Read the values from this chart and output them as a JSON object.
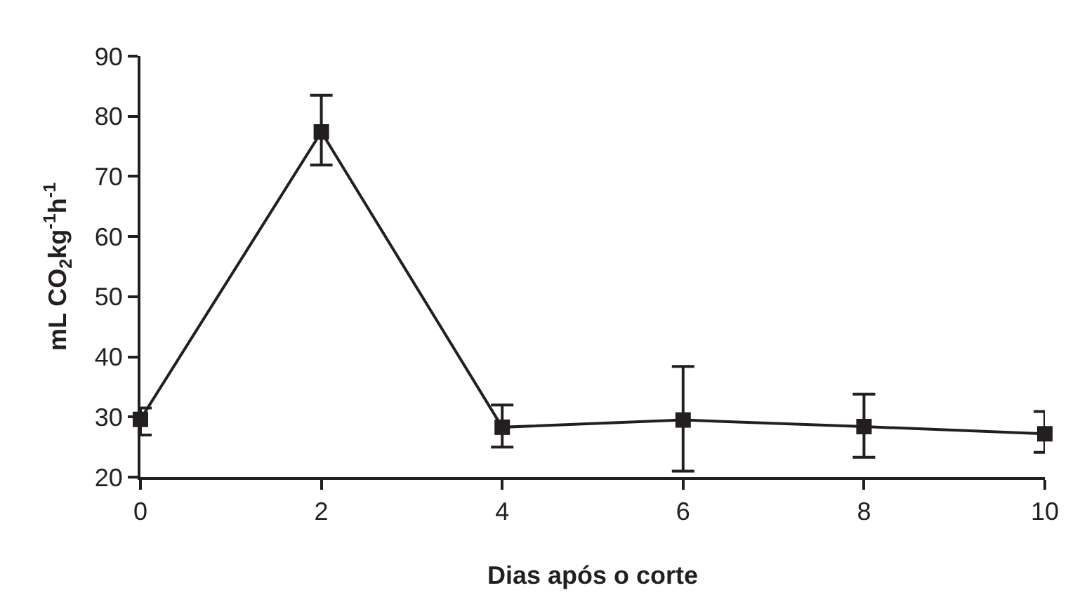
{
  "chart_data": {
    "type": "line",
    "xlabel": "Dias após o corte",
    "ylabel": "mL CO$_{2}$kg$^{-1}$h$^{-1}$",
    "x": [
      0,
      2,
      4,
      6,
      8,
      10
    ],
    "series": [
      {
        "color": "#231f20",
        "values": [
          29.6,
          77.4,
          28.3,
          29.5,
          28.4,
          27.2
        ],
        "errors": [
          [
            27,
            31.5
          ],
          [
            71.9,
            83.5
          ],
          [
            25,
            32
          ],
          [
            21,
            38.4
          ],
          [
            23.3,
            33.8
          ],
          [
            24.1,
            30.9
          ]
        ]
      }
    ],
    "xlim": [
      0,
      10
    ],
    "xticks": [
      0,
      2,
      4,
      6,
      8,
      10
    ],
    "ylim": [
      20,
      90
    ],
    "yticks": [
      20,
      30,
      40,
      50,
      60,
      70,
      80,
      90
    ],
    "marker": "square",
    "line_style": "solid"
  }
}
